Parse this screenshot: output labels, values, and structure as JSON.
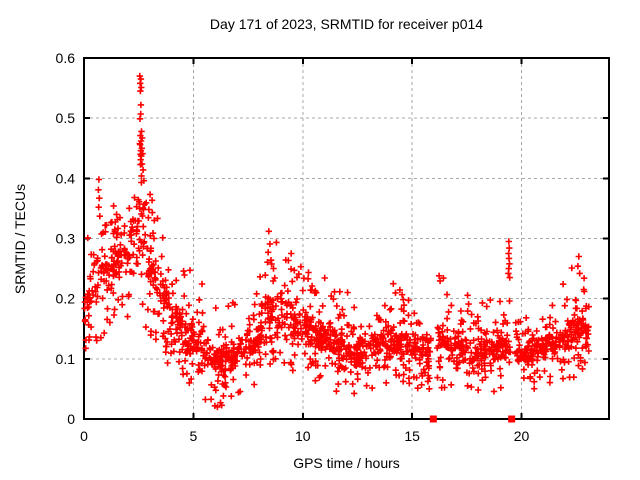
{
  "chart_data": {
    "type": "scatter",
    "title": "Day 171 of 2023, SRMTID for receiver p014",
    "xlabel": "GPS time / hours",
    "ylabel": "SRMTID / TECUs",
    "xlim": [
      0,
      24
    ],
    "ylim": [
      0,
      0.6
    ],
    "xticks": [
      {
        "v": 0,
        "label": "0"
      },
      {
        "v": 5,
        "label": "5"
      },
      {
        "v": 10,
        "label": "10"
      },
      {
        "v": 15,
        "label": "15"
      },
      {
        "v": 20,
        "label": "20"
      }
    ],
    "yticks": [
      {
        "v": 0,
        "label": "0"
      },
      {
        "v": 0.1,
        "label": "0.1"
      },
      {
        "v": 0.2,
        "label": "0.2"
      },
      {
        "v": 0.3,
        "label": "0.3"
      },
      {
        "v": 0.4,
        "label": "0.4"
      },
      {
        "v": 0.5,
        "label": "0.5"
      },
      {
        "v": 0.6,
        "label": "0.6"
      }
    ],
    "grid": true,
    "legend": "none",
    "marker": "plus",
    "colors": {
      "marker": "#ff0000",
      "grid": "#a8a8a8",
      "axis": "#000000",
      "background": "#ffffff"
    },
    "x_data_range": [
      0,
      23.12
    ],
    "point_count_estimate": 1750,
    "series_name": "SRMTID",
    "envelope_columns": [
      "hour",
      "tail_min",
      "core_min",
      "core_max",
      "tail_max"
    ],
    "envelope": [
      [
        0.0,
        0.11,
        0.14,
        0.22,
        0.31
      ],
      [
        0.5,
        0.12,
        0.16,
        0.28,
        0.4
      ],
      [
        1.0,
        0.14,
        0.19,
        0.3,
        0.36
      ],
      [
        1.6,
        0.15,
        0.21,
        0.33,
        0.38
      ],
      [
        2.2,
        0.15,
        0.22,
        0.35,
        0.41
      ],
      [
        2.6,
        0.17,
        0.25,
        0.42,
        0.5
      ],
      [
        3.0,
        0.13,
        0.18,
        0.32,
        0.38
      ],
      [
        3.6,
        0.1,
        0.14,
        0.26,
        0.32
      ],
      [
        4.2,
        0.08,
        0.12,
        0.22,
        0.28
      ],
      [
        5.0,
        0.05,
        0.09,
        0.17,
        0.25
      ],
      [
        5.8,
        0.02,
        0.07,
        0.14,
        0.2
      ],
      [
        6.6,
        0.02,
        0.06,
        0.13,
        0.2
      ],
      [
        7.4,
        0.04,
        0.08,
        0.15,
        0.22
      ],
      [
        8.0,
        0.06,
        0.1,
        0.17,
        0.25
      ],
      [
        8.6,
        0.08,
        0.12,
        0.23,
        0.3
      ],
      [
        9.3,
        0.07,
        0.12,
        0.22,
        0.29
      ],
      [
        10.0,
        0.06,
        0.11,
        0.2,
        0.28
      ],
      [
        10.8,
        0.05,
        0.1,
        0.17,
        0.24
      ],
      [
        11.6,
        0.04,
        0.09,
        0.15,
        0.22
      ],
      [
        12.4,
        0.04,
        0.08,
        0.15,
        0.21
      ],
      [
        13.2,
        0.05,
        0.09,
        0.16,
        0.22
      ],
      [
        14.3,
        0.05,
        0.09,
        0.17,
        0.23
      ],
      [
        15.2,
        0.04,
        0.08,
        0.15,
        0.21
      ],
      [
        16.5,
        0.05,
        0.09,
        0.16,
        0.25
      ],
      [
        17.5,
        0.04,
        0.08,
        0.15,
        0.22
      ],
      [
        18.5,
        0.04,
        0.08,
        0.14,
        0.2
      ],
      [
        19.3,
        0.05,
        0.09,
        0.15,
        0.22
      ],
      [
        20.2,
        0.05,
        0.08,
        0.14,
        0.2
      ],
      [
        21.0,
        0.05,
        0.09,
        0.15,
        0.21
      ],
      [
        22.0,
        0.06,
        0.1,
        0.17,
        0.23
      ],
      [
        22.7,
        0.07,
        0.11,
        0.2,
        0.26
      ],
      [
        23.12,
        0.06,
        0.1,
        0.18,
        0.24
      ]
    ],
    "highlight_clusters": [
      {
        "name": "peak-0240",
        "points": [
          [
            2.55,
            0.57
          ],
          [
            2.6,
            0.565
          ],
          [
            2.57,
            0.558
          ],
          [
            2.62,
            0.551
          ],
          [
            2.58,
            0.545
          ],
          [
            2.6,
            0.522
          ],
          [
            2.59,
            0.507
          ],
          [
            2.56,
            0.499
          ],
          [
            2.63,
            0.478
          ],
          [
            2.58,
            0.471
          ],
          [
            2.66,
            0.467
          ],
          [
            2.61,
            0.462
          ],
          [
            2.57,
            0.456
          ],
          [
            2.64,
            0.45
          ],
          [
            2.6,
            0.446
          ],
          [
            2.68,
            0.441
          ],
          [
            2.62,
            0.437
          ],
          [
            2.59,
            0.431
          ],
          [
            2.65,
            0.424
          ],
          [
            2.7,
            0.414
          ],
          [
            2.63,
            0.404
          ],
          [
            2.74,
            0.396
          ]
        ]
      },
      {
        "name": "rise-0040",
        "points": [
          [
            0.68,
            0.398
          ],
          [
            0.66,
            0.381
          ],
          [
            0.7,
            0.367
          ],
          [
            0.67,
            0.352
          ],
          [
            0.72,
            0.337
          ]
        ]
      },
      {
        "name": "bump-0830",
        "points": [
          [
            8.45,
            0.312
          ],
          [
            8.5,
            0.291
          ],
          [
            8.42,
            0.277
          ],
          [
            8.55,
            0.264
          ]
        ]
      },
      {
        "name": "streak-1925",
        "points": [
          [
            19.42,
            0.295
          ],
          [
            19.44,
            0.284
          ],
          [
            19.41,
            0.275
          ],
          [
            19.43,
            0.267
          ],
          [
            19.45,
            0.258
          ],
          [
            19.42,
            0.25
          ],
          [
            19.4,
            0.242
          ],
          [
            19.46,
            0.235
          ]
        ]
      },
      {
        "name": "end-rise",
        "points": [
          [
            22.3,
            0.251
          ],
          [
            22.62,
            0.27
          ],
          [
            22.58,
            0.254
          ],
          [
            22.66,
            0.242
          ],
          [
            22.86,
            0.234
          ],
          [
            21.9,
            0.224
          ]
        ]
      }
    ],
    "data_gaps": [
      [
        15.85,
        16.12
      ],
      [
        19.5,
        19.72
      ]
    ],
    "gap_markers": {
      "style": "filled-square",
      "y": 0,
      "x": [
        15.97,
        19.55
      ]
    }
  }
}
